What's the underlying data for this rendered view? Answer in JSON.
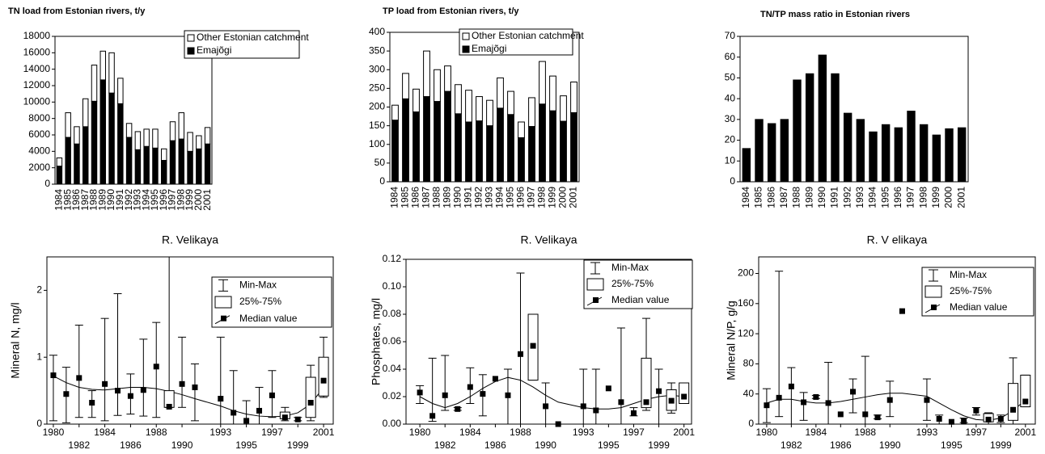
{
  "chart_data": [
    {
      "type": "stacked_bar",
      "title": "TN load from Estonian rivers, t/y",
      "categories": [
        "1984",
        "1985",
        "1986",
        "1987",
        "1988",
        "1989",
        "1990",
        "1991",
        "1992",
        "1993",
        "1994",
        "1995",
        "1996",
        "1997",
        "1998",
        "1999",
        "2000",
        "2001"
      ],
      "series": [
        {
          "name": "Emajõgi",
          "color": "#000000",
          "values": [
            2200,
            5700,
            4900,
            7000,
            10100,
            12700,
            11100,
            9800,
            5700,
            4200,
            4600,
            4400,
            2900,
            5300,
            5500,
            4000,
            4300,
            4900
          ]
        },
        {
          "name": "Other Estonian catchment",
          "color": "#ffffff",
          "values": [
            1000,
            3000,
            2100,
            3400,
            4400,
            3500,
            4900,
            3100,
            1700,
            2200,
            2100,
            2300,
            1400,
            2300,
            3200,
            2300,
            1600,
            2000
          ]
        }
      ],
      "ylim": [
        0,
        18000
      ],
      "yticks": [
        0,
        2000,
        4000,
        6000,
        8000,
        10000,
        12000,
        14000,
        16000,
        18000
      ],
      "grid": false
    },
    {
      "type": "stacked_bar",
      "title": "TP load from Estonian rivers, t/y",
      "categories": [
        "1984",
        "1985",
        "1986",
        "1987",
        "1988",
        "1989",
        "1990",
        "1991",
        "1992",
        "1993",
        "1994",
        "1995",
        "1996",
        "1997",
        "1998",
        "1999",
        "2000",
        "2001"
      ],
      "series": [
        {
          "name": "Emajõgi",
          "color": "#000000",
          "values": [
            165,
            222,
            187,
            228,
            215,
            242,
            182,
            160,
            163,
            150,
            197,
            180,
            118,
            148,
            208,
            190,
            162,
            185
          ]
        },
        {
          "name": "Other Estonian catchment",
          "color": "#ffffff",
          "values": [
            40,
            68,
            61,
            122,
            85,
            68,
            78,
            85,
            65,
            68,
            81,
            62,
            42,
            77,
            114,
            93,
            68,
            82
          ]
        }
      ],
      "ylim": [
        0,
        400
      ],
      "yticks": [
        0,
        50,
        100,
        150,
        200,
        250,
        300,
        350,
        400
      ],
      "grid": false
    },
    {
      "type": "bar",
      "title": "TN/TP mass ratio in Estonian rivers",
      "categories": [
        "1984",
        "1985",
        "1986",
        "1987",
        "1988",
        "1989",
        "1990",
        "1991",
        "1992",
        "1993",
        "1994",
        "1995",
        "1996",
        "1997",
        "1998",
        "1999",
        "2000",
        "2001"
      ],
      "values": [
        16,
        30,
        28,
        30,
        49,
        52,
        61,
        52,
        33,
        30,
        24,
        27.5,
        26,
        34,
        27.5,
        22.5,
        25.5,
        26
      ],
      "color": "#000000",
      "ylim": [
        0,
        70
      ],
      "yticks": [
        0,
        10,
        20,
        30,
        40,
        50,
        60,
        70
      ],
      "grid": false
    },
    {
      "type": "box",
      "title": "R. Velikaya",
      "y_label": "Mineral N, mg/l",
      "legend_entries": [
        "Min-Max",
        "25%-75%",
        "Median value"
      ],
      "x": [
        1980,
        1981,
        1982,
        1983,
        1984,
        1985,
        1986,
        1987,
        1988,
        1989,
        1990,
        1991,
        1993,
        1994,
        1995,
        1996,
        1997,
        1998,
        1999,
        2000,
        2001
      ],
      "median": [
        0.73,
        0.45,
        0.69,
        0.32,
        0.6,
        0.5,
        0.42,
        0.51,
        0.86,
        0.26,
        0.6,
        0.55,
        0.38,
        0.17,
        0.05,
        0.2,
        0.43,
        0.1,
        0.07,
        0.32,
        0.65
      ],
      "min": [
        0.05,
        0.02,
        0.1,
        0.1,
        0.05,
        0.13,
        0.15,
        0.12,
        0.1,
        0.25,
        0.25,
        0.05,
        0,
        0,
        0,
        0,
        0.1,
        0.05,
        0.05,
        0.05,
        0.4
      ],
      "max": [
        1.03,
        0.85,
        1.48,
        0.5,
        1.58,
        1.95,
        0.75,
        1.27,
        1.52,
        2.5,
        1.3,
        0.9,
        1.3,
        0.8,
        0.35,
        0.55,
        0.8,
        0.25,
        0.1,
        0.88,
        1.3
      ],
      "q1": [
        null,
        null,
        null,
        null,
        null,
        null,
        null,
        null,
        null,
        0.25,
        null,
        null,
        null,
        null,
        null,
        null,
        null,
        0.08,
        null,
        0.1,
        0.42
      ],
      "q3": [
        null,
        null,
        null,
        null,
        null,
        null,
        null,
        null,
        null,
        0.5,
        null,
        null,
        null,
        null,
        null,
        null,
        null,
        0.18,
        null,
        0.7,
        1.0
      ],
      "fit": [
        0.72,
        0.62,
        0.55,
        0.52,
        0.51,
        0.53,
        0.55,
        0.55,
        0.53,
        0.49,
        0.44,
        0.38,
        0.27,
        0.2,
        0.15,
        0.12,
        0.11,
        0.12,
        0.17,
        0.3,
        0.55
      ],
      "xlim": [
        1979.5,
        2001.75
      ],
      "xticks": [
        1980,
        1982,
        1984,
        1986,
        1988,
        1990,
        1993,
        1995,
        1997,
        1999,
        2001
      ],
      "ylim": [
        0,
        2.5
      ],
      "yticks": [
        0,
        1,
        2
      ]
    },
    {
      "type": "box",
      "title": "R. Velikaya",
      "y_label": "Phosphates, mg/l",
      "legend_entries": [
        "Min-Max",
        "25%-75%",
        "Median value"
      ],
      "x": [
        1980,
        1981,
        1982,
        1983,
        1984,
        1985,
        1986,
        1987,
        1988,
        1989,
        1990,
        1991,
        1993,
        1994,
        1995,
        1996,
        1997,
        1998,
        1999,
        2000,
        2001
      ],
      "median": [
        0.023,
        0.006,
        0.021,
        0.011,
        0.027,
        0.022,
        0.033,
        0.021,
        0.051,
        0.057,
        0.013,
        0,
        0.013,
        0.01,
        0.026,
        0.016,
        0.008,
        0.016,
        0.024,
        0.017,
        0.02
      ],
      "min": [
        0.015,
        0.002,
        0.01,
        0.01,
        0.015,
        0.006,
        null,
        0,
        0,
        0.032,
        0,
        null,
        0,
        0,
        null,
        0,
        0.006,
        0.01,
        0,
        0.008,
        0.015
      ],
      "max": [
        0.028,
        0.048,
        0.05,
        0.012,
        0.041,
        0.036,
        null,
        0.04,
        0.11,
        0.08,
        0.03,
        null,
        0.04,
        0.04,
        null,
        0.07,
        0.012,
        0.077,
        0.04,
        0.03,
        0.03
      ],
      "q1": [
        null,
        null,
        null,
        null,
        null,
        null,
        null,
        null,
        null,
        0.032,
        null,
        null,
        null,
        null,
        null,
        null,
        null,
        0.012,
        null,
        0.01,
        0.015
      ],
      "q3": [
        null,
        null,
        null,
        null,
        null,
        null,
        null,
        null,
        null,
        0.08,
        null,
        null,
        null,
        null,
        null,
        null,
        null,
        0.048,
        null,
        0.025,
        0.03
      ],
      "fit": [
        0.02,
        0.015,
        0.012,
        0.015,
        0.02,
        0.026,
        0.031,
        0.034,
        0.032,
        0.027,
        0.021,
        0.016,
        0.012,
        0.011,
        0.011,
        0.012,
        0.015,
        0.018,
        0.02,
        0.021,
        0.02
      ],
      "xlim": [
        1978.9,
        2001.6
      ],
      "xticks": [
        1980,
        1982,
        1984,
        1986,
        1988,
        1990,
        1993,
        1995,
        1997,
        1999,
        2001
      ],
      "ylim": [
        0,
        0.12
      ],
      "yticks": [
        {
          "value": 0,
          "label": "0.00"
        },
        {
          "value": 0.02,
          "label": "0.02"
        },
        {
          "value": 0.04,
          "label": "0.04"
        },
        {
          "value": 0.06,
          "label": "0.06"
        },
        {
          "value": 0.08,
          "label": "0.08"
        },
        {
          "value": 0.1,
          "label": "0.10"
        },
        {
          "value": 0.12,
          "label": "0.12"
        }
      ]
    },
    {
      "type": "box",
      "title": "R. V elikaya",
      "y_label": "Mineral N/P, g/g",
      "legend_entries": [
        "Min-Max",
        "25%-75%",
        "Median value"
      ],
      "x": [
        1980,
        1981,
        1982,
        1983,
        1984,
        1985,
        1986,
        1987,
        1988,
        1989,
        1990,
        1991,
        1993,
        1994,
        1995,
        1996,
        1997,
        1998,
        1999,
        2000,
        2001
      ],
      "median": [
        25,
        35,
        50,
        29,
        36,
        28,
        13,
        43,
        13,
        9,
        32,
        150,
        32,
        7,
        3,
        4,
        18,
        6,
        7,
        19,
        30
      ],
      "min": [
        2,
        10,
        0,
        5,
        34,
        0,
        null,
        15,
        0,
        7,
        10,
        null,
        5,
        0,
        null,
        2,
        12,
        0,
        2,
        0,
        23
      ],
      "max": [
        47,
        203,
        75,
        42,
        38,
        82,
        null,
        60,
        90,
        12,
        57,
        null,
        60,
        12,
        null,
        8,
        22,
        15,
        12,
        88,
        65
      ],
      "q1": [
        null,
        null,
        null,
        null,
        null,
        null,
        null,
        null,
        null,
        null,
        null,
        null,
        null,
        null,
        null,
        null,
        null,
        3,
        null,
        5,
        23
      ],
      "q3": [
        null,
        null,
        null,
        null,
        null,
        null,
        null,
        null,
        null,
        null,
        null,
        null,
        null,
        null,
        null,
        null,
        null,
        14,
        null,
        54,
        65
      ],
      "fit": [
        28,
        33,
        33,
        30,
        28,
        28,
        30,
        33,
        36,
        39,
        41,
        41,
        37,
        28,
        19,
        11,
        6,
        5,
        8,
        18,
        32
      ],
      "xlim": [
        1979.35,
        2001.8
      ],
      "xticks": [
        1980,
        1982,
        1984,
        1986,
        1988,
        1990,
        1993,
        1995,
        1997,
        1999,
        2001
      ],
      "ylim": [
        0,
        222
      ],
      "yticks": [
        0,
        40,
        80,
        120,
        160,
        200
      ]
    }
  ]
}
